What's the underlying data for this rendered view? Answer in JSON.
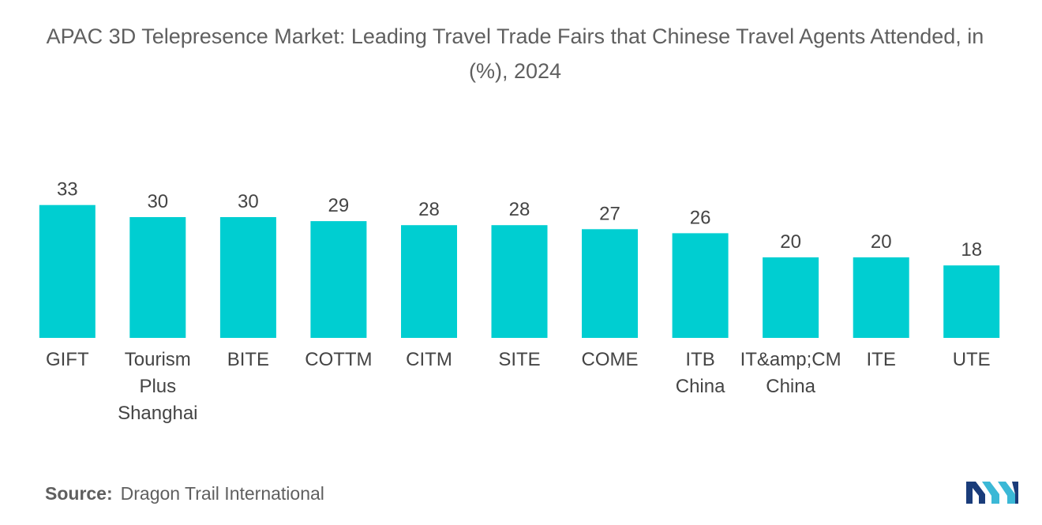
{
  "chart_data": {
    "type": "bar",
    "title": "APAC 3D Telepresence Market: Leading Travel Trade Fairs that Chinese Travel Agents Attended, in (%), 2024",
    "categories": [
      [
        "GIFT"
      ],
      [
        "Tourism",
        "Plus",
        "Shanghai"
      ],
      [
        "BITE"
      ],
      [
        "COTTM"
      ],
      [
        "CITM"
      ],
      [
        "SITE"
      ],
      [
        "COME"
      ],
      [
        "ITB",
        "China"
      ],
      [
        "IT&amp;CM",
        "China"
      ],
      [
        "ITE"
      ],
      [
        "UTE"
      ]
    ],
    "values": [
      33,
      30,
      30,
      29,
      28,
      28,
      27,
      26,
      20,
      20,
      18
    ],
    "bar_color": "#00CED1",
    "xlabel": "",
    "ylabel": "",
    "grid": false,
    "legend": "none",
    "data_labels": true
  },
  "source": {
    "label": "Source:",
    "text": "Dragon Trail International"
  },
  "logo": {
    "icon": "mordor-intelligence-logo-icon",
    "colors": [
      "#1a3c7a",
      "#3bb8d6"
    ]
  }
}
